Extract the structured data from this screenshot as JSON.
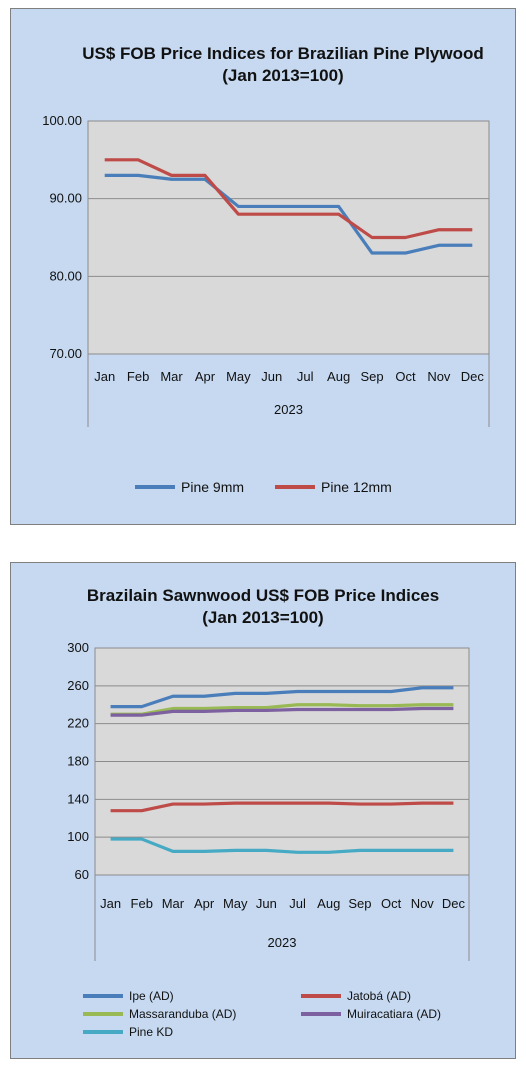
{
  "chart_data": [
    {
      "type": "line",
      "title_line1": "US$ FOB Price Indices for Brazilian  Pine Plywood",
      "title_line2": "(Jan 2013=100)",
      "categories": [
        "Jan",
        "Feb",
        "Mar",
        "Apr",
        "May",
        "Jun",
        "Jul",
        "Aug",
        "Sep",
        "Oct",
        "Nov",
        "Dec"
      ],
      "category_group": "2023",
      "ylim": [
        70,
        100
      ],
      "yticks": [
        "100.00",
        "90.00",
        "80.00",
        "70.00"
      ],
      "ytick_values": [
        100,
        90,
        80,
        70
      ],
      "grid": true,
      "legend_position": "bottom",
      "series": [
        {
          "name": "Pine 9mm",
          "color": "#4a7ebb",
          "values": [
            93,
            93,
            92.5,
            92.5,
            89,
            89,
            89,
            89,
            83,
            83,
            84,
            84
          ]
        },
        {
          "name": "Pine 12mm",
          "color": "#be4b48",
          "values": [
            95,
            95,
            93,
            93,
            88,
            88,
            88,
            88,
            85,
            85,
            86,
            86
          ]
        }
      ]
    },
    {
      "type": "line",
      "title_line1": "Brazilain Sawnwood US$ FOB Price Indices",
      "title_line2": "(Jan 2013=100)",
      "categories": [
        "Jan",
        "Feb",
        "Mar",
        "Apr",
        "May",
        "Jun",
        "Jul",
        "Aug",
        "Sep",
        "Oct",
        "Nov",
        "Dec"
      ],
      "category_group": "2023",
      "ylim": [
        60,
        300
      ],
      "yticks": [
        "300",
        "260",
        "220",
        "180",
        "140",
        "100",
        "60"
      ],
      "ytick_values": [
        300,
        260,
        220,
        180,
        140,
        100,
        60
      ],
      "grid": true,
      "legend_position": "bottom",
      "series": [
        {
          "name": "Ipe (AD)",
          "color": "#4a7ebb",
          "values": [
            238,
            238,
            249,
            249,
            252,
            252,
            254,
            254,
            254,
            254,
            258,
            258
          ]
        },
        {
          "name": "Jatobá (AD)",
          "color": "#be4b48",
          "values": [
            128,
            128,
            135,
            135,
            136,
            136,
            136,
            136,
            135,
            135,
            136,
            136
          ]
        },
        {
          "name": "Massaranduba (AD)",
          "color": "#98b954",
          "values": [
            230,
            230,
            236,
            236,
            237,
            237,
            240,
            240,
            239,
            239,
            240,
            240
          ]
        },
        {
          "name": "Muiracatiara (AD)",
          "color": "#7d60a0",
          "values": [
            229,
            229,
            233,
            233,
            234,
            234,
            235,
            235,
            235,
            235,
            236,
            236
          ]
        },
        {
          "name": "Pine KD",
          "color": "#46aac5",
          "values": [
            98,
            98,
            85,
            85,
            86,
            86,
            84,
            84,
            86,
            86,
            86,
            86
          ]
        }
      ]
    }
  ]
}
